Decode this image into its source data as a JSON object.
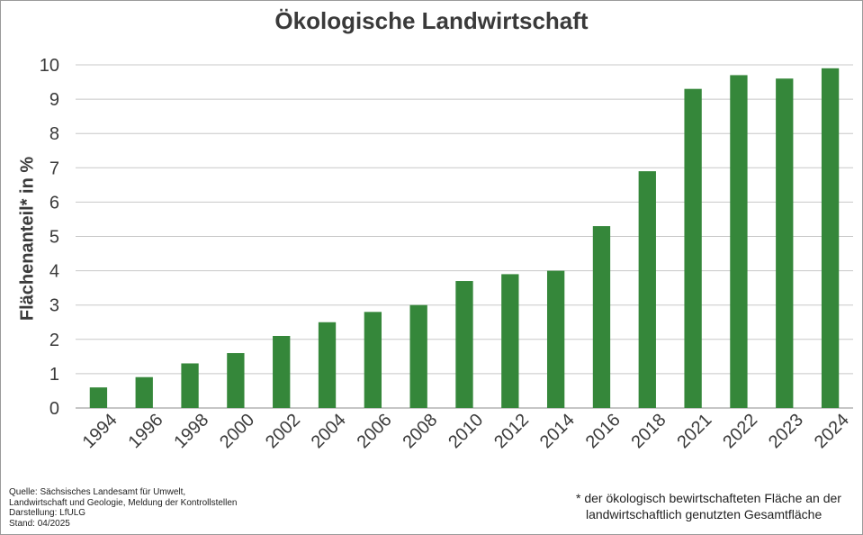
{
  "chart_data": {
    "type": "bar",
    "title": "Ökologische Landwirtschaft",
    "xlabel": "",
    "ylabel": "Flächenanteil*  in %",
    "ylim": [
      0,
      10
    ],
    "yticks": [
      "0",
      "1",
      "2",
      "3",
      "4",
      "5",
      "6",
      "7",
      "8",
      "9",
      "10"
    ],
    "grid": true,
    "bar_color": "#35873a",
    "categories": [
      "1994",
      "1996",
      "1998",
      "2000",
      "2002",
      "2004",
      "2006",
      "2008",
      "2010",
      "2012",
      "2014",
      "2016",
      "2018",
      "2021",
      "2022",
      "2023",
      "2024"
    ],
    "values": [
      0.6,
      0.9,
      1.3,
      1.6,
      2.1,
      2.5,
      2.8,
      3.0,
      3.7,
      3.9,
      4.0,
      5.3,
      6.9,
      9.3,
      9.7,
      9.6,
      9.9
    ]
  },
  "source_lines": [
    "Quelle:  Sächsisches Landesamt für Umwelt,",
    "Landwirtschaft und Geologie, Meldung der Kontrollstellen",
    "Darstellung: LfULG",
    "Stand: 04/2025"
  ],
  "footnote_lines": [
    "* der ökologisch bewirtschafteten Fläche an der",
    "landwirtschaftlich genutzten Gesamtfläche"
  ]
}
